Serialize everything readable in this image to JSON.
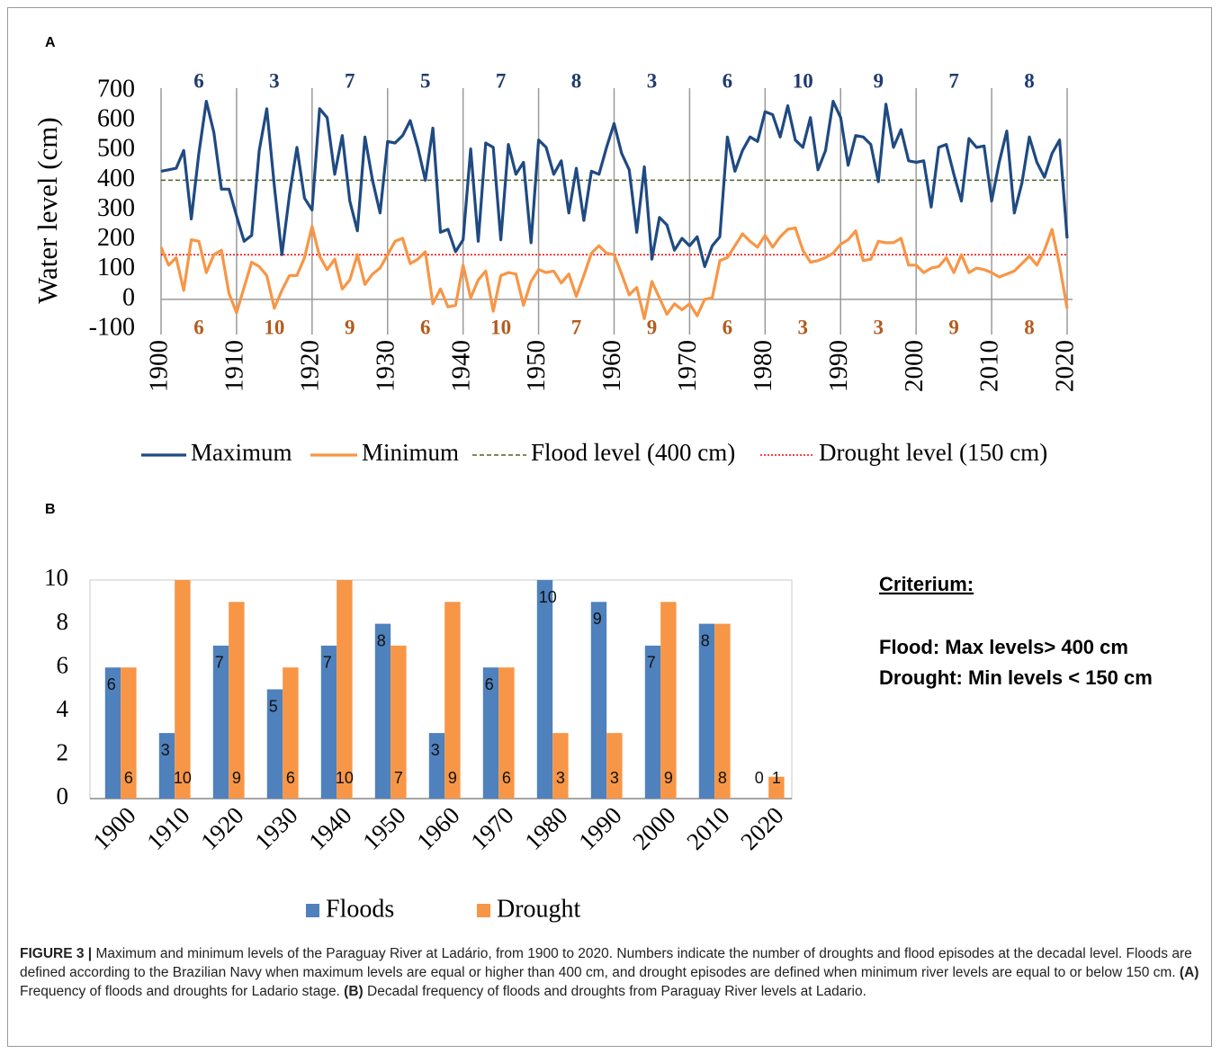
{
  "chart_data": [
    {
      "type": "line",
      "panel": "A",
      "ylabel": "Water level (cm)",
      "x": [
        1900,
        1901,
        1902,
        1903,
        1904,
        1905,
        1906,
        1907,
        1908,
        1909,
        1910,
        1911,
        1912,
        1913,
        1914,
        1915,
        1916,
        1917,
        1918,
        1919,
        1920,
        1921,
        1922,
        1923,
        1924,
        1925,
        1926,
        1927,
        1928,
        1929,
        1930,
        1931,
        1932,
        1933,
        1934,
        1935,
        1936,
        1937,
        1938,
        1939,
        1940,
        1941,
        1942,
        1943,
        1944,
        1945,
        1946,
        1947,
        1948,
        1949,
        1950,
        1951,
        1952,
        1953,
        1954,
        1955,
        1956,
        1957,
        1958,
        1959,
        1960,
        1961,
        1962,
        1963,
        1964,
        1965,
        1966,
        1967,
        1968,
        1969,
        1970,
        1971,
        1972,
        1973,
        1974,
        1975,
        1976,
        1977,
        1978,
        1979,
        1980,
        1981,
        1982,
        1983,
        1984,
        1985,
        1986,
        1987,
        1988,
        1989,
        1990,
        1991,
        1992,
        1993,
        1994,
        1995,
        1996,
        1997,
        1998,
        1999,
        2000,
        2001,
        2002,
        2003,
        2004,
        2005,
        2006,
        2007,
        2008,
        2009,
        2010,
        2011,
        2012,
        2013,
        2014,
        2015,
        2016,
        2017,
        2018,
        2019,
        2020
      ],
      "series": [
        {
          "name": "Maximum",
          "color": "#1f4a82",
          "values": [
            430,
            435,
            440,
            500,
            270,
            490,
            665,
            560,
            370,
            370,
            280,
            195,
            215,
            500,
            640,
            380,
            150,
            350,
            510,
            340,
            300,
            640,
            610,
            420,
            550,
            330,
            230,
            545,
            400,
            290,
            530,
            525,
            550,
            600,
            510,
            400,
            575,
            225,
            235,
            160,
            200,
            505,
            195,
            525,
            510,
            200,
            520,
            420,
            460,
            190,
            535,
            510,
            420,
            465,
            290,
            440,
            265,
            430,
            420,
            510,
            590,
            490,
            435,
            225,
            445,
            135,
            275,
            250,
            165,
            205,
            180,
            210,
            110,
            180,
            210,
            545,
            430,
            500,
            545,
            530,
            630,
            620,
            545,
            650,
            535,
            510,
            610,
            435,
            500,
            665,
            610,
            450,
            550,
            545,
            520,
            395,
            655,
            510,
            570,
            465,
            460,
            465,
            310,
            510,
            520,
            420,
            330,
            540,
            510,
            515,
            330,
            460,
            565,
            290,
            390,
            545,
            460,
            410,
            490,
            535,
            205
          ]
        },
        {
          "name": "Minimum",
          "color": "#f79646",
          "values": [
            175,
            115,
            140,
            30,
            200,
            195,
            90,
            150,
            165,
            20,
            -45,
            40,
            125,
            110,
            80,
            -30,
            30,
            80,
            80,
            140,
            245,
            145,
            100,
            135,
            35,
            65,
            150,
            50,
            85,
            105,
            150,
            195,
            205,
            120,
            135,
            160,
            -15,
            35,
            -25,
            -20,
            115,
            5,
            65,
            95,
            -40,
            80,
            90,
            85,
            -20,
            60,
            100,
            90,
            95,
            55,
            85,
            10,
            80,
            155,
            180,
            155,
            150,
            85,
            15,
            40,
            -65,
            60,
            5,
            -50,
            -15,
            -35,
            -15,
            -55,
            0,
            5,
            130,
            140,
            180,
            220,
            195,
            175,
            215,
            175,
            210,
            235,
            240,
            165,
            125,
            130,
            140,
            155,
            185,
            200,
            230,
            130,
            135,
            195,
            190,
            190,
            205,
            115,
            115,
            90,
            105,
            110,
            140,
            90,
            150,
            90,
            105,
            100,
            90,
            75,
            85,
            95,
            120,
            145,
            115,
            165,
            235,
            115,
            -30
          ]
        }
      ],
      "hlines": [
        {
          "name": "Flood level (400 cm)",
          "value": 400,
          "color": "#4f6228",
          "dash": "5,3"
        },
        {
          "name": "Drought level (150 cm)",
          "value": 150,
          "color": "#ff0000",
          "dash": "2,2"
        }
      ],
      "flood_counts": [
        6,
        3,
        7,
        5,
        7,
        8,
        3,
        6,
        10,
        9,
        7,
        8
      ],
      "drought_counts": [
        6,
        10,
        9,
        6,
        10,
        7,
        9,
        6,
        3,
        3,
        9,
        8
      ],
      "xlim": [
        1900,
        2020
      ],
      "xticks": [
        1900,
        1910,
        1920,
        1930,
        1940,
        1950,
        1960,
        1970,
        1980,
        1990,
        2000,
        2010,
        2020
      ],
      "ylim": [
        -100,
        700
      ],
      "yticks": [
        -100,
        0,
        100,
        200,
        300,
        400,
        500,
        600,
        700
      ]
    },
    {
      "type": "bar",
      "panel": "B",
      "categories": [
        "1900",
        "1910",
        "1920",
        "1930",
        "1940",
        "1950",
        "1960",
        "1970",
        "1980",
        "1990",
        "2000",
        "2010",
        "2020"
      ],
      "series": [
        {
          "name": "Floods",
          "color": "#4f81bd",
          "values": [
            6,
            3,
            7,
            5,
            7,
            8,
            3,
            6,
            10,
            9,
            7,
            8,
            0
          ]
        },
        {
          "name": "Drought",
          "color": "#f79646",
          "values": [
            6,
            10,
            9,
            6,
            10,
            7,
            9,
            6,
            3,
            3,
            9,
            8,
            1
          ]
        }
      ],
      "ylim": [
        0,
        10
      ],
      "yticks": [
        0,
        2,
        4,
        6,
        8,
        10
      ],
      "criterium": {
        "heading": "Criterium:",
        "lines": [
          "Flood:  Max levels> 400 cm",
          "Drought: Min levels < 150 cm"
        ]
      }
    }
  ],
  "caption": [
    {
      "text": "FIGURE 3 |",
      "bold": true
    },
    {
      "text": " Maximum and minimum levels of the Paraguay River at Ladário, from 1900 to 2020. Numbers indicate the number of droughts and flood episodes at the decadal level. Floods are defined according to the Brazilian Navy when maximum levels are equal or higher than 400 cm, and drought episodes are defined when minimum river levels are equal to or below 150 cm. ",
      "bold": false
    },
    {
      "text": "(A)",
      "bold": true
    },
    {
      "text": " Frequency of floods and droughts for Ladario stage. ",
      "bold": false
    },
    {
      "text": "(B)",
      "bold": true
    },
    {
      "text": " Decadal frequency of floods and droughts from Paraguay River levels at Ladario.",
      "bold": false
    }
  ]
}
